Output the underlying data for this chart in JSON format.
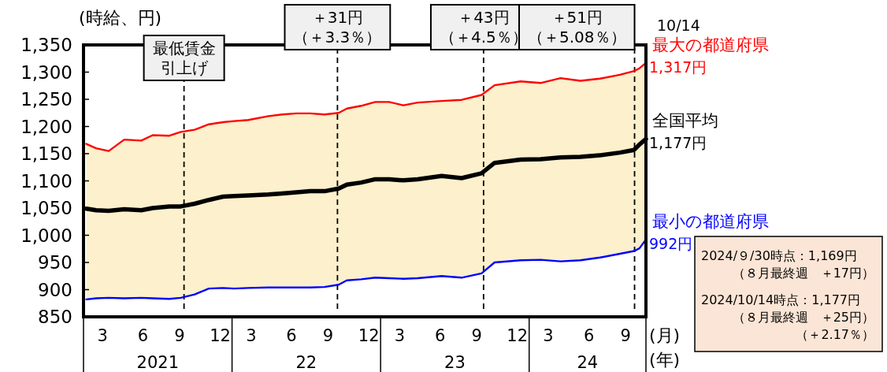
{
  "chart_data": {
    "type": "line",
    "ylabel": "(時給、円)",
    "xlabel": "(月)\n(年)",
    "x": [
      "2021-01-08",
      "2021-02-01",
      "2021-03-04",
      "2021-04-11",
      "2021-05-23",
      "2021-06-20",
      "2021-07-31",
      "2021-08-28",
      "2021-10-01",
      "2021-11-05",
      "2021-12-10",
      "2022-01-06",
      "2022-02-10",
      "2022-03-31",
      "2022-05-04",
      "2022-06-08",
      "2022-07-12",
      "2022-08-16",
      "2022-09-20",
      "2022-10-10",
      "2022-11-14",
      "2022-12-19",
      "2023-01-22",
      "2023-02-26",
      "2023-04-02",
      "2023-05-31",
      "2023-07-19",
      "2023-09-06",
      "2023-10-08",
      "2023-12-11",
      "2024-01-29",
      "2024-03-18",
      "2024-05-06",
      "2024-06-23",
      "2024-08-11",
      "2024-09-15",
      "2024-09-28",
      "2024-10-14"
    ],
    "series": [
      {
        "name": "最大の都道府県",
        "color": "#ff0000",
        "values": [
          1168,
          1160,
          1155,
          1176,
          1174,
          1184,
          1183,
          1190,
          1194,
          1204,
          1208,
          1210,
          1212,
          1219,
          1222,
          1224,
          1224,
          1222,
          1225,
          1233,
          1238,
          1245,
          1245,
          1239,
          1244,
          1247,
          1249,
          1258,
          1276,
          1283,
          1280,
          1289,
          1284,
          1288,
          1295,
          1302,
          1307,
          1317
        ],
        "value_labels": [
          null,
          null,
          null,
          null,
          null,
          null,
          null,
          null,
          null,
          null,
          null,
          null,
          null,
          null,
          null,
          null,
          null,
          null,
          null,
          null,
          null,
          null,
          null,
          null,
          null,
          null,
          null,
          null,
          null,
          null,
          null,
          null,
          null,
          null,
          null,
          null,
          null,
          "1,317円"
        ]
      },
      {
        "name": "全国平均",
        "color": "#000000",
        "values": [
          1049,
          1046,
          1045,
          1048,
          1046,
          1050,
          1053,
          1053,
          1058,
          1065,
          1071,
          1072,
          1073,
          1075,
          1077,
          1079,
          1081,
          1081,
          1086,
          1093,
          1097,
          1103,
          1103,
          1101,
          1103,
          1109,
          1105,
          1114,
          1133,
          1139,
          1140,
          1143,
          1144,
          1147,
          1152,
          1157,
          1167,
          1177
        ],
        "value_labels": [
          null,
          null,
          null,
          null,
          null,
          null,
          null,
          null,
          null,
          null,
          null,
          null,
          null,
          null,
          null,
          null,
          null,
          null,
          null,
          null,
          null,
          null,
          null,
          null,
          null,
          null,
          null,
          null,
          null,
          null,
          null,
          null,
          null,
          null,
          null,
          null,
          null,
          "1,177円"
        ],
        "lower": [
          882,
          884,
          885,
          884,
          885,
          884,
          883,
          885,
          891,
          902,
          903,
          902,
          903,
          904,
          904,
          904,
          904,
          905,
          909,
          917,
          919,
          922,
          921,
          920,
          921,
          925,
          922,
          930,
          950,
          954,
          955,
          952,
          954,
          959,
          966,
          971,
          976,
          992
        ],
        "upper": [
          1168,
          1160,
          1155,
          1176,
          1174,
          1184,
          1183,
          1190,
          1194,
          1204,
          1208,
          1210,
          1212,
          1219,
          1222,
          1224,
          1224,
          1222,
          1225,
          1233,
          1238,
          1245,
          1245,
          1239,
          1244,
          1247,
          1249,
          1258,
          1276,
          1283,
          1280,
          1289,
          1284,
          1288,
          1295,
          1302,
          1307,
          1317
        ]
      },
      {
        "name": "最小の都道府県",
        "color": "#0000ff",
        "values": [
          882,
          884,
          885,
          884,
          885,
          884,
          883,
          885,
          891,
          902,
          903,
          902,
          903,
          904,
          904,
          904,
          904,
          905,
          909,
          917,
          919,
          922,
          921,
          920,
          921,
          925,
          922,
          930,
          950,
          954,
          955,
          952,
          954,
          959,
          966,
          971,
          976,
          992
        ],
        "value_labels": [
          null,
          null,
          null,
          null,
          null,
          null,
          null,
          null,
          null,
          null,
          null,
          null,
          null,
          null,
          null,
          null,
          null,
          null,
          null,
          null,
          null,
          null,
          null,
          null,
          null,
          null,
          null,
          null,
          null,
          null,
          null,
          null,
          null,
          null,
          null,
          null,
          null,
          "992円"
        ]
      }
    ],
    "xlim": [
      "2021-01-01",
      "2024-10-14"
    ],
    "xticks": [
      {
        "value": "2021-02-17",
        "label": "3"
      },
      {
        "value": "2021-05-27",
        "label": "6"
      },
      {
        "value": "2021-08-25",
        "label": "9"
      },
      {
        "value": "2021-12-03",
        "label": "12"
      },
      {
        "value": "2022-02-17",
        "label": "3"
      },
      {
        "value": "2022-05-27",
        "label": "6"
      },
      {
        "value": "2022-08-25",
        "label": "9"
      },
      {
        "value": "2022-12-03",
        "label": "12"
      },
      {
        "value": "2023-02-17",
        "label": "3"
      },
      {
        "value": "2023-05-27",
        "label": "6"
      },
      {
        "value": "2023-08-25",
        "label": "9"
      },
      {
        "value": "2023-12-03",
        "label": "12"
      },
      {
        "value": "2024-02-17",
        "label": "3"
      },
      {
        "value": "2024-05-27",
        "label": "6"
      },
      {
        "value": "2024-08-25",
        "label": "9"
      }
    ],
    "ylim": [
      850,
      1350
    ],
    "yticks": [
      {
        "value": 850,
        "label": "850"
      },
      {
        "value": 900,
        "label": "900"
      },
      {
        "value": 950,
        "label": "950"
      },
      {
        "value": 1000,
        "label": "1,000"
      },
      {
        "value": 1050,
        "label": "1,050"
      },
      {
        "value": 1100,
        "label": "1,100"
      },
      {
        "value": 1150,
        "label": "1,150"
      },
      {
        "value": 1200,
        "label": "1,200"
      },
      {
        "value": 1250,
        "label": "1,250"
      },
      {
        "value": 1300,
        "label": "1,300"
      },
      {
        "value": 1350,
        "label": "1,350"
      }
    ],
    "ref_lines": [
      {
        "axis": "x",
        "value": "2021-09-05",
        "label": "最低賃金引上げ",
        "line_style": "dashed"
      },
      {
        "axis": "x",
        "value": "2022-09-17",
        "label": "＋31円（＋3.3％）",
        "line_style": "dashed"
      },
      {
        "axis": "x",
        "value": "2023-09-11",
        "label": "＋43円（＋4.5％）",
        "line_style": "dashed"
      },
      {
        "axis": "x",
        "value": "2024-09-16",
        "label": "＋51円（＋5.08％）",
        "line_style": "dashed"
      }
    ],
    "annotations": [
      "10/14",
      "2021",
      "22",
      "23",
      "24",
      "2024/９/30時点：1,169円（８月最終週　＋17円）",
      "2024/10/14時点：1,177円（８月最終週　＋25円）（＋2.17％）"
    ],
    "grid": false
  }
}
